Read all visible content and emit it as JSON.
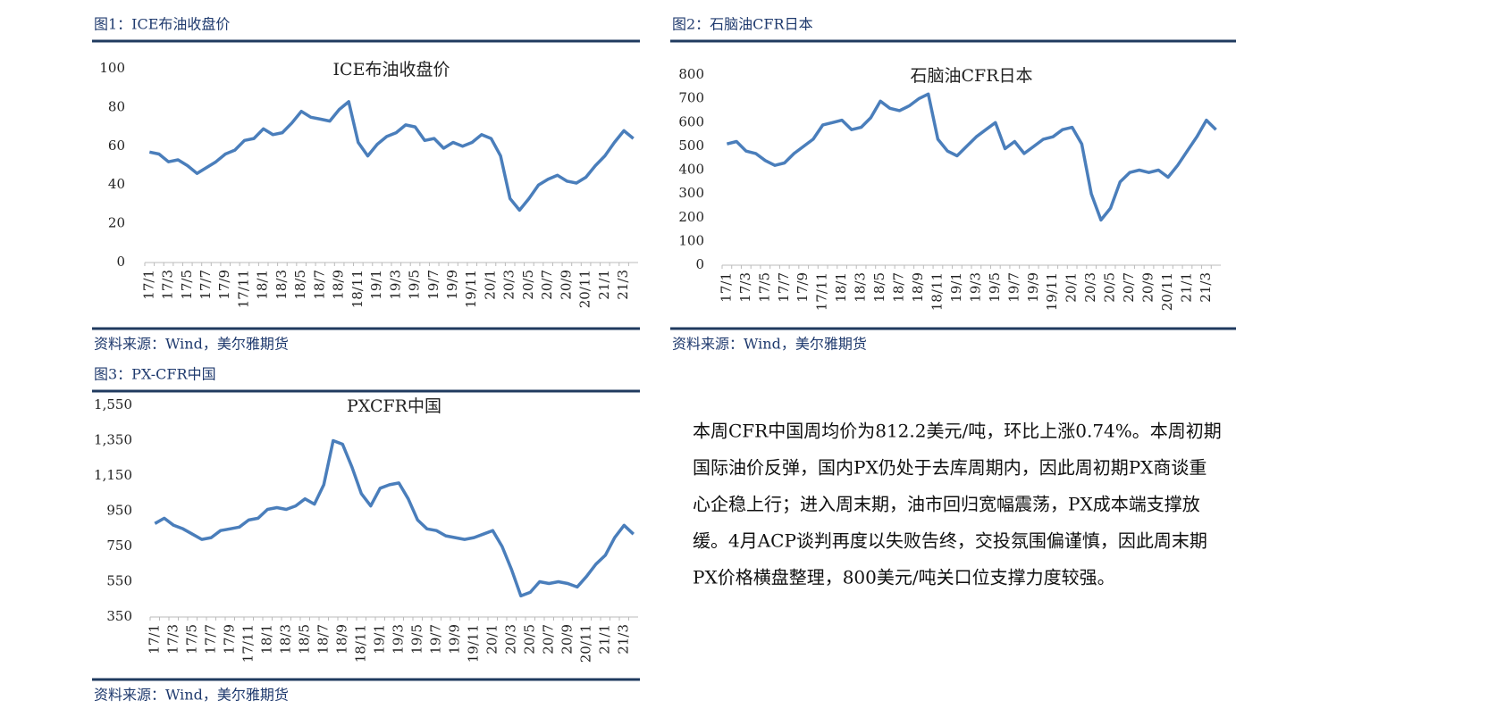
{
  "chart_data": [
    {
      "type": "line",
      "caption": "图1：ICE布油收盘价",
      "title": "ICE布油收盘价",
      "source": "资料来源：Wind，美尔雅期货",
      "color": "#4a7ebb",
      "categories": [
        "17/1",
        null,
        "17/3",
        null,
        "17/5",
        null,
        "17/7",
        null,
        "17/9",
        null,
        "17/11",
        null,
        "18/1",
        null,
        "18/3",
        null,
        "18/5",
        null,
        "18/7",
        null,
        "18/9",
        null,
        "18/11",
        null,
        "19/1",
        null,
        "19/3",
        null,
        "19/5",
        null,
        "19/7",
        null,
        "19/9",
        null,
        "19/11",
        null,
        "20/1",
        null,
        "20/3",
        null,
        "20/5",
        null,
        "20/7",
        null,
        "20/9",
        null,
        "20/11",
        null,
        "21/1",
        null,
        "21/3",
        null
      ],
      "values": [
        57,
        56,
        52,
        53,
        50,
        46,
        49,
        52,
        56,
        58,
        63,
        64,
        69,
        66,
        67,
        72,
        78,
        75,
        74,
        73,
        79,
        83,
        62,
        55,
        61,
        65,
        67,
        71,
        70,
        63,
        64,
        59,
        62,
        60,
        62,
        66,
        64,
        55,
        33,
        27,
        33,
        40,
        43,
        45,
        42,
        41,
        44,
        50,
        55,
        62,
        68,
        64
      ],
      "ylim": [
        0,
        100
      ],
      "yticks": [
        0,
        20,
        40,
        60,
        80,
        100
      ]
    },
    {
      "type": "line",
      "caption": "图2：石脑油CFR日本",
      "title": "石脑油CFR日本",
      "source": "资料来源：Wind，美尔雅期货",
      "color": "#4a7ebb",
      "categories": [
        "17/1",
        null,
        "17/3",
        null,
        "17/5",
        null,
        "17/7",
        null,
        "17/9",
        null,
        "17/11",
        null,
        "18/1",
        null,
        "18/3",
        null,
        "18/5",
        null,
        "18/7",
        null,
        "18/9",
        null,
        "18/11",
        null,
        "19/1",
        null,
        "19/3",
        null,
        "19/5",
        null,
        "19/7",
        null,
        "19/9",
        null,
        "19/11",
        null,
        "20/1",
        null,
        "20/3",
        null,
        "20/5",
        null,
        "20/7",
        null,
        "20/9",
        null,
        "20/11",
        null,
        "21/1",
        null,
        "21/3",
        null
      ],
      "values": [
        510,
        520,
        480,
        470,
        440,
        420,
        430,
        470,
        500,
        530,
        590,
        600,
        610,
        570,
        580,
        620,
        690,
        660,
        650,
        670,
        700,
        720,
        530,
        480,
        460,
        500,
        540,
        570,
        600,
        490,
        520,
        470,
        500,
        530,
        540,
        570,
        580,
        510,
        300,
        190,
        240,
        350,
        390,
        400,
        390,
        400,
        370,
        420,
        480,
        540,
        610,
        570
      ],
      "ylim": [
        0,
        800
      ],
      "yticks": [
        0,
        100,
        200,
        300,
        400,
        500,
        600,
        700,
        800
      ]
    },
    {
      "type": "line",
      "caption": "图3：PX-CFR中国",
      "title": "PXCFR中国",
      "source": "资料来源：Wind，美尔雅期货",
      "color": "#4a7ebb",
      "categories": [
        "17/1",
        null,
        "17/3",
        null,
        "17/5",
        null,
        "17/7",
        null,
        "17/9",
        null,
        "17/11",
        null,
        "18/1",
        null,
        "18/3",
        null,
        "18/5",
        null,
        "18/7",
        null,
        "18/9",
        null,
        "18/11",
        null,
        "19/1",
        null,
        "19/3",
        null,
        "19/5",
        null,
        "19/7",
        null,
        "19/9",
        null,
        "19/11",
        null,
        "20/1",
        null,
        "20/3",
        null,
        "20/5",
        null,
        "20/7",
        null,
        "20/9",
        null,
        "20/11",
        null,
        "21/1",
        null,
        "21/3",
        null
      ],
      "values": [
        880,
        910,
        870,
        850,
        820,
        790,
        800,
        840,
        850,
        860,
        900,
        910,
        960,
        970,
        960,
        980,
        1020,
        990,
        1100,
        1350,
        1330,
        1200,
        1050,
        980,
        1080,
        1100,
        1110,
        1020,
        900,
        850,
        840,
        810,
        800,
        790,
        800,
        820,
        840,
        750,
        620,
        470,
        490,
        550,
        540,
        550,
        540,
        520,
        580,
        650,
        700,
        800,
        870,
        820
      ],
      "ylim": [
        350,
        1550
      ],
      "yticks": [
        350,
        550,
        750,
        950,
        {
          "value": 1150,
          "label": "1,150"
        },
        {
          "value": 1350,
          "label": "1,350"
        },
        {
          "value": 1550,
          "label": "1,550"
        }
      ]
    }
  ],
  "paragraph": [
    "本周CFR中国周均价为812.2美元/吨，环比上涨0.74%。本周初期",
    "国际油价反弹，国内PX仍处于去库周期内，因此周初期PX商谈重",
    "心企稳上行；进入周末期，油市回归宽幅震荡，PX成本端支撑放",
    "缓。4月ACP谈判再度以失败告终，交投氛围偏谨慎，因此周末期",
    "PX价格横盘整理，800美元/吨关口位支撑力度较强。"
  ]
}
